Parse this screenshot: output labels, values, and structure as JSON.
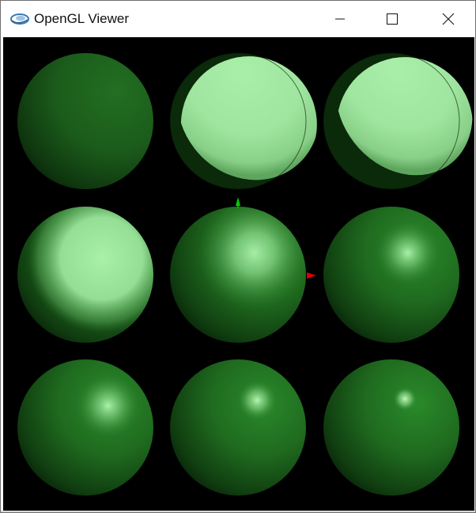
{
  "window": {
    "title": "OpenGL Viewer",
    "icon": "opengl-logo-icon",
    "controls": {
      "minimize_icon": "minimize-icon",
      "maximize_icon": "maximize-icon",
      "close_icon": "close-icon"
    }
  },
  "scene": {
    "background_color": "#000000",
    "material_color": "#1e6e1e",
    "highlight_color": "#a8f0a8",
    "axes": [
      {
        "name": "y-axis",
        "color": "#00cc00"
      },
      {
        "name": "x-axis",
        "color": "#dd0000"
      }
    ],
    "spheres": [
      {
        "row": 1,
        "col": 1,
        "highlight": "none"
      },
      {
        "row": 1,
        "col": 2,
        "highlight": "hard-broad"
      },
      {
        "row": 1,
        "col": 3,
        "highlight": "hard-broad"
      },
      {
        "row": 2,
        "col": 1,
        "highlight": "soft-broad"
      },
      {
        "row": 2,
        "col": 2,
        "highlight": "soft-medium"
      },
      {
        "row": 2,
        "col": 3,
        "highlight": "soft-small"
      },
      {
        "row": 3,
        "col": 1,
        "highlight": "small"
      },
      {
        "row": 3,
        "col": 2,
        "highlight": "smaller"
      },
      {
        "row": 3,
        "col": 3,
        "highlight": "smallest"
      }
    ]
  }
}
